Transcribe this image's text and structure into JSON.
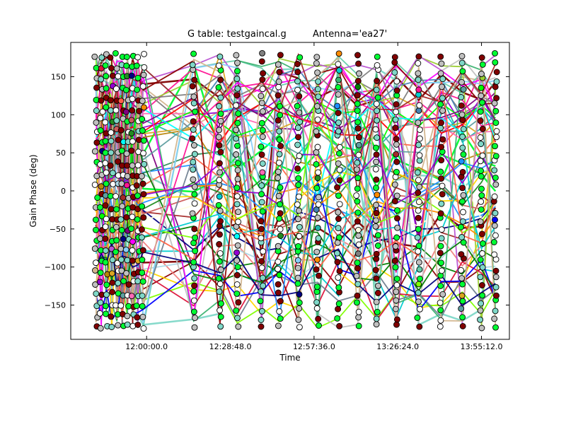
{
  "chart_data": {
    "type": "scatter",
    "title_left": "G table: testgaincal.g",
    "title_right": "Antenna='ea27'",
    "xlabel": "Time",
    "ylabel": "Gain Phase (deg)",
    "x_unit": "time of day",
    "x_ticks": [
      "12:00:00.0",
      "12:28:48.0",
      "12:57:36.0",
      "13:26:24.0",
      "13:55:12.0"
    ],
    "x_tick_values_hours": [
      12.0,
      12.48,
      12.96,
      13.44,
      13.92
    ],
    "xlim_hours": [
      11.565,
      14.08
    ],
    "y_ticks": [
      -150,
      -100,
      -50,
      0,
      50,
      100,
      150
    ],
    "ylim": [
      -195,
      195
    ],
    "grid": false,
    "connected_markers": true,
    "marker": "circle",
    "scan_times_hours": [
      11.71,
      11.74,
      11.77,
      11.8,
      11.83,
      11.86,
      11.89,
      11.92,
      11.95,
      11.98,
      12.27,
      12.42,
      12.52,
      12.66,
      12.76,
      12.87,
      12.98,
      13.1,
      13.21,
      13.32,
      13.43,
      13.56,
      13.69,
      13.81,
      13.92,
      14.0
    ],
    "series_colors": [
      "#ff0000",
      "#00ff00",
      "#0000ff",
      "#ff00ff",
      "#00ffff",
      "#ff8c00",
      "#8b0000",
      "#008000",
      "#800080",
      "#ffd700",
      "#1e90ff",
      "#ff1493",
      "#7fff00",
      "#00ced1",
      "#808080",
      "#d2b48c",
      "#a52a2a",
      "#000080",
      "#ff6347",
      "#9400d3",
      "#2e8b57",
      "#f08080",
      "#20b2aa",
      "#b8860b",
      "#9acd32",
      "#4682b4",
      "#dc143c",
      "#66cdaa",
      "#add8e6",
      "#ffffe0",
      "#c0c0c0",
      "#daa520",
      "#ba55d3",
      "#3cb371",
      "#cd5c5c",
      "#87cefa",
      "#228b22",
      "#ff69b4",
      "#5f9ea0",
      "#708090"
    ],
    "highlight_colors": [
      "#800000",
      "#00ff33",
      "#7fd8c8"
    ]
  }
}
